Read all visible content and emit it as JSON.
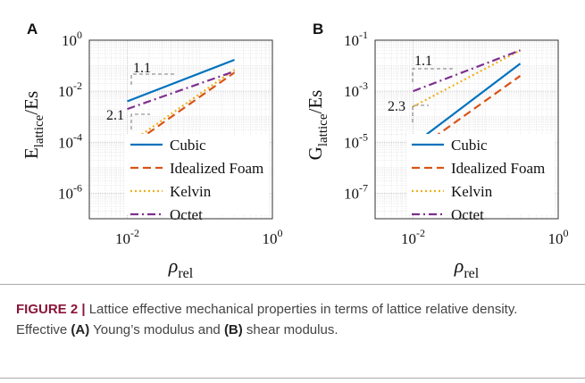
{
  "chart_data": [
    {
      "type": "line",
      "panel": "A",
      "ylabel": {
        "main": "E",
        "sub": "lattice",
        "rest": "/Es"
      },
      "xlabel": {
        "main": "ρ",
        "sub": "rel"
      },
      "log_x": true,
      "log_y": true,
      "grid": true,
      "legend": "lower right",
      "xlim": [
        0.003,
        1
      ],
      "ylim": [
        1e-07,
        1
      ],
      "xticks": [
        {
          "value": 0.01,
          "label": "10",
          "exponent": "-2"
        },
        {
          "value": 1,
          "label": "10",
          "exponent": "0"
        }
      ],
      "yticks": [
        {
          "value": 1,
          "label": "10",
          "exponent": "0"
        },
        {
          "value": 0.01,
          "label": "10",
          "exponent": "-2"
        },
        {
          "value": 0.0001,
          "label": "10",
          "exponent": "-4"
        },
        {
          "value": 1e-06,
          "label": "10",
          "exponent": "-6"
        }
      ],
      "x": [
        0.01,
        0.3
      ],
      "series": [
        {
          "name": "Cubic",
          "color": "#0072bd",
          "dash": "solid",
          "values": [
            0.004,
            0.17
          ]
        },
        {
          "name": "Idealized Foam",
          "color": "#d95319",
          "dash": "dashed",
          "values": [
            6e-05,
            0.054
          ]
        },
        {
          "name": "Kelvin",
          "color": "#edb120",
          "dash": "dotted",
          "values": [
            8e-05,
            0.07
          ]
        },
        {
          "name": "Octet",
          "color": "#7e2f8e",
          "dash": "dashdot",
          "values": [
            0.002,
            0.06
          ]
        }
      ],
      "annotations": [
        "1.1",
        "2.1"
      ]
    },
    {
      "type": "line",
      "panel": "B",
      "ylabel": {
        "main": "G",
        "sub": "lattice",
        "rest": "/Es"
      },
      "xlabel": {
        "main": "ρ",
        "sub": "rel"
      },
      "log_x": true,
      "log_y": true,
      "grid": true,
      "legend": "lower right",
      "xlim": [
        0.003,
        1
      ],
      "ylim": [
        1e-08,
        0.1
      ],
      "xticks": [
        {
          "value": 0.01,
          "label": "10",
          "exponent": "-2"
        },
        {
          "value": 1,
          "label": "10",
          "exponent": "0"
        }
      ],
      "yticks": [
        {
          "value": 0.1,
          "label": "10",
          "exponent": "-1"
        },
        {
          "value": 0.001,
          "label": "10",
          "exponent": "-3"
        },
        {
          "value": 1e-05,
          "label": "10",
          "exponent": "-5"
        },
        {
          "value": 1e-07,
          "label": "10",
          "exponent": "-7"
        }
      ],
      "x": [
        0.01,
        0.3
      ],
      "series": [
        {
          "name": "Cubic",
          "color": "#0072bd",
          "dash": "solid",
          "values": [
            8e-06,
            0.012
          ]
        },
        {
          "name": "Idealized Foam",
          "color": "#d95319",
          "dash": "dashed",
          "values": [
            4e-06,
            0.004
          ]
        },
        {
          "name": "Kelvin",
          "color": "#edb120",
          "dash": "dotted",
          "values": [
            0.00025,
            0.04
          ]
        },
        {
          "name": "Octet",
          "color": "#7e2f8e",
          "dash": "dashdot",
          "values": [
            0.001,
            0.04
          ]
        }
      ],
      "annotations": [
        "1.1",
        "2.3"
      ]
    }
  ],
  "caption": [
    {
      "text": "FIGURE 2 | ",
      "bold": true,
      "accent": true
    },
    {
      "text": "Lattice effective mechanical properties in terms of lattice relative density. Effective ",
      "bold": false
    },
    {
      "text": "(A)",
      "bold": true
    },
    {
      "text": " Young’s modulus and ",
      "bold": false
    },
    {
      "text": "(B)",
      "bold": true
    },
    {
      "text": " shear modulus.",
      "bold": false
    }
  ]
}
